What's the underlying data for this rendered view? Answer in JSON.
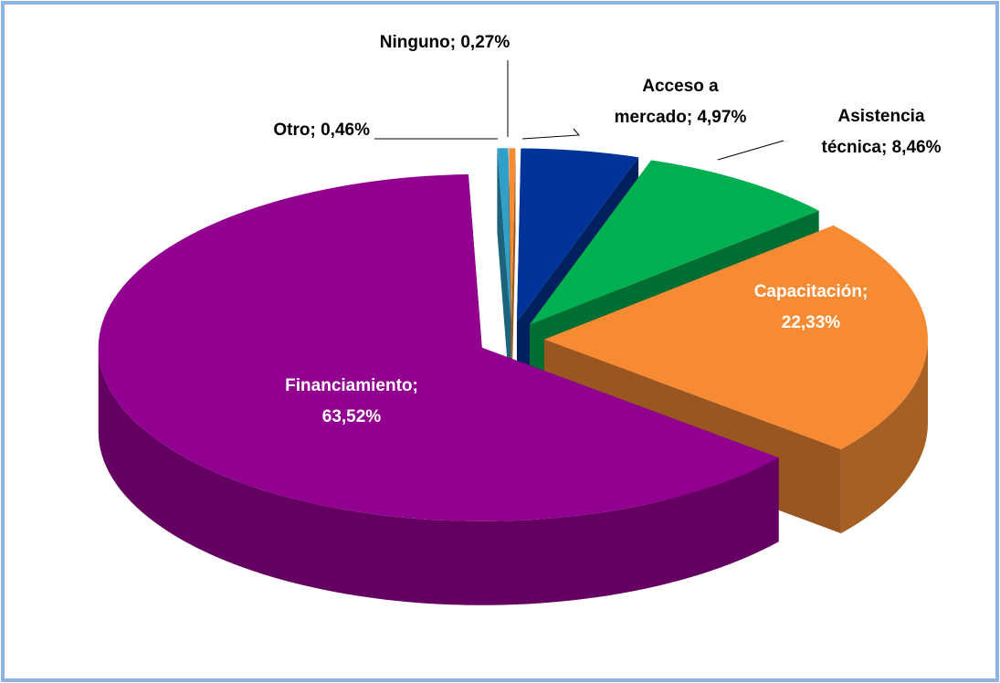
{
  "chart_data": {
    "type": "pie",
    "values": [
      4.97,
      8.46,
      22.33,
      63.52,
      0.46,
      0.27
    ],
    "value_labels": [
      "Acceso a mercado; 4,97%",
      "Asistencia técnica; 8,46%",
      "Capacitación; 22,33%",
      "Financiamiento; 63,52%",
      "Otro; 0,46%",
      "Ninguno; 0,27%"
    ],
    "colors": [
      "#003399",
      "#00b050",
      "#f68b33",
      "#92008f",
      "#31a0c8",
      "#f68b33"
    ]
  }
}
